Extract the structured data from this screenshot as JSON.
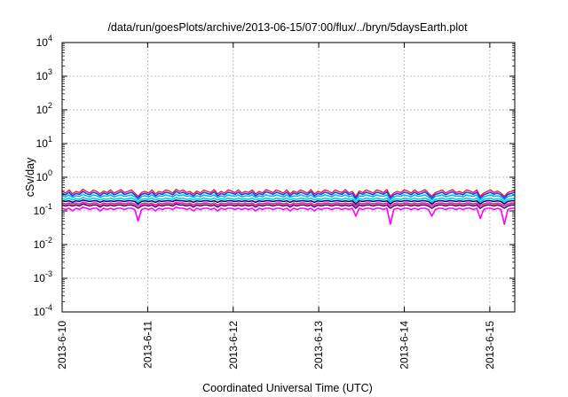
{
  "chart_data": {
    "type": "line",
    "title": "/data/run/goesPlots/archive/2013-06-15/07:00/flux/../bryn/5daysEarth.plot",
    "xlabel": "Coordinated Universal Time (UTC)",
    "ylabel": "cSv/day",
    "yscale": "log",
    "ylim": [
      0.0001,
      10000
    ],
    "xlim": [
      "2013-06-10 00:00",
      "2013-06-15 07:00"
    ],
    "grid": true,
    "legend": "none",
    "y_ticks": [
      {
        "mant": "10",
        "exp": "-4"
      },
      {
        "mant": "10",
        "exp": "-3"
      },
      {
        "mant": "10",
        "exp": "-2"
      },
      {
        "mant": "10",
        "exp": "-1"
      },
      {
        "mant": "10",
        "exp": "0"
      },
      {
        "mant": "10",
        "exp": "1"
      },
      {
        "mant": "10",
        "exp": "2"
      },
      {
        "mant": "10",
        "exp": "3"
      },
      {
        "mant": "10",
        "exp": "4"
      }
    ],
    "x_ticks": [
      "2013-6-10",
      "2013-6-11",
      "2013-6-12",
      "2013-6-13",
      "2013-6-14",
      "2013-6-15"
    ],
    "series": [
      {
        "color": "#ff00ff",
        "values": [
          0.12,
          0.11,
          0.12,
          0.1,
          0.12,
          0.11,
          0.13,
          0.12,
          0.11,
          0.12,
          0.12,
          0.1,
          0.12,
          0.11,
          0.12,
          0.11,
          0.12,
          0.12,
          0.11,
          0.12,
          0.12,
          0.11,
          0.05,
          0.11,
          0.12,
          0.11,
          0.12,
          0.1,
          0.12,
          0.11,
          0.12,
          0.12,
          0.11,
          0.13,
          0.12,
          0.12,
          0.11,
          0.12,
          0.1,
          0.12,
          0.11,
          0.12,
          0.12,
          0.11,
          0.12,
          0.1,
          0.12,
          0.11,
          0.12,
          0.12,
          0.11,
          0.12,
          0.11,
          0.12,
          0.11,
          0.12,
          0.1,
          0.12,
          0.11,
          0.12,
          0.12,
          0.11,
          0.12,
          0.12,
          0.11,
          0.12,
          0.1,
          0.12,
          0.11,
          0.12,
          0.12,
          0.11,
          0.12,
          0.1,
          0.12,
          0.11,
          0.12,
          0.12,
          0.11,
          0.12,
          0.12,
          0.11,
          0.12,
          0.11,
          0.12,
          0.07,
          0.12,
          0.11,
          0.12,
          0.12,
          0.11,
          0.12,
          0.12,
          0.11,
          0.12,
          0.04,
          0.11,
          0.12,
          0.11,
          0.12,
          0.12,
          0.11,
          0.12,
          0.11,
          0.12,
          0.12,
          0.11,
          0.07,
          0.11,
          0.12,
          0.12,
          0.11,
          0.12,
          0.12,
          0.11,
          0.12,
          0.11,
          0.12,
          0.12,
          0.11,
          0.12,
          0.06,
          0.11,
          0.12,
          0.12,
          0.11,
          0.12,
          0.11,
          0.04,
          0.11,
          0.12,
          0.12
        ]
      },
      {
        "color": "#4b0082",
        "values": [
          0.15,
          0.14,
          0.15,
          0.14,
          0.15,
          0.14,
          0.16,
          0.15,
          0.14,
          0.15,
          0.15,
          0.13,
          0.15,
          0.14,
          0.15,
          0.14,
          0.15,
          0.15,
          0.14,
          0.15,
          0.15,
          0.14,
          0.12,
          0.14,
          0.15,
          0.14,
          0.15,
          0.13,
          0.15,
          0.14,
          0.15,
          0.15,
          0.14,
          0.16,
          0.15,
          0.15,
          0.14,
          0.15,
          0.13,
          0.15,
          0.14,
          0.15,
          0.15,
          0.14,
          0.15,
          0.13,
          0.15,
          0.14,
          0.15,
          0.15,
          0.14,
          0.15,
          0.14,
          0.15,
          0.14,
          0.15,
          0.13,
          0.15,
          0.14,
          0.15,
          0.15,
          0.14,
          0.15,
          0.15,
          0.14,
          0.15,
          0.13,
          0.15,
          0.14,
          0.15,
          0.15,
          0.14,
          0.15,
          0.13,
          0.15,
          0.14,
          0.15,
          0.15,
          0.14,
          0.15,
          0.15,
          0.14,
          0.15,
          0.14,
          0.15,
          0.12,
          0.15,
          0.14,
          0.15,
          0.15,
          0.14,
          0.15,
          0.15,
          0.14,
          0.15,
          0.12,
          0.14,
          0.15,
          0.14,
          0.15,
          0.15,
          0.14,
          0.15,
          0.14,
          0.15,
          0.15,
          0.14,
          0.12,
          0.14,
          0.15,
          0.15,
          0.14,
          0.15,
          0.15,
          0.14,
          0.15,
          0.14,
          0.15,
          0.15,
          0.14,
          0.15,
          0.12,
          0.14,
          0.15,
          0.15,
          0.14,
          0.15,
          0.14,
          0.12,
          0.14,
          0.15,
          0.15
        ]
      },
      {
        "color": "#ff1493",
        "values": [
          0.17,
          0.16,
          0.17,
          0.16,
          0.17,
          0.16,
          0.18,
          0.17,
          0.16,
          0.17,
          0.17,
          0.15,
          0.17,
          0.16,
          0.17,
          0.16,
          0.17,
          0.17,
          0.16,
          0.17,
          0.17,
          0.16,
          0.14,
          0.16,
          0.17,
          0.16,
          0.17,
          0.15,
          0.17,
          0.16,
          0.17,
          0.17,
          0.16,
          0.18,
          0.17,
          0.17,
          0.16,
          0.17,
          0.15,
          0.17,
          0.16,
          0.17,
          0.17,
          0.16,
          0.17,
          0.15,
          0.17,
          0.16,
          0.17,
          0.17,
          0.16,
          0.17,
          0.16,
          0.17,
          0.16,
          0.17,
          0.15,
          0.17,
          0.16,
          0.17,
          0.17,
          0.16,
          0.17,
          0.17,
          0.16,
          0.17,
          0.15,
          0.17,
          0.16,
          0.17,
          0.17,
          0.16,
          0.17,
          0.15,
          0.17,
          0.16,
          0.17,
          0.17,
          0.16,
          0.17,
          0.17,
          0.16,
          0.17,
          0.16,
          0.17,
          0.14,
          0.17,
          0.16,
          0.17,
          0.17,
          0.16,
          0.17,
          0.17,
          0.16,
          0.17,
          0.14,
          0.16,
          0.17,
          0.16,
          0.17,
          0.17,
          0.16,
          0.17,
          0.16,
          0.17,
          0.17,
          0.16,
          0.14,
          0.16,
          0.17,
          0.17,
          0.16,
          0.17,
          0.17,
          0.16,
          0.17,
          0.16,
          0.17,
          0.17,
          0.16,
          0.17,
          0.14,
          0.16,
          0.17,
          0.17,
          0.16,
          0.17,
          0.16,
          0.14,
          0.16,
          0.17,
          0.17
        ]
      },
      {
        "color": "#000080",
        "values": [
          0.2,
          0.19,
          0.2,
          0.18,
          0.2,
          0.19,
          0.21,
          0.2,
          0.19,
          0.2,
          0.2,
          0.18,
          0.2,
          0.19,
          0.2,
          0.19,
          0.2,
          0.2,
          0.19,
          0.2,
          0.2,
          0.19,
          0.16,
          0.19,
          0.2,
          0.19,
          0.2,
          0.18,
          0.2,
          0.19,
          0.2,
          0.2,
          0.19,
          0.21,
          0.2,
          0.2,
          0.19,
          0.2,
          0.18,
          0.2,
          0.19,
          0.2,
          0.2,
          0.19,
          0.2,
          0.18,
          0.2,
          0.19,
          0.2,
          0.2,
          0.19,
          0.2,
          0.19,
          0.2,
          0.19,
          0.2,
          0.18,
          0.2,
          0.19,
          0.2,
          0.2,
          0.19,
          0.2,
          0.2,
          0.19,
          0.2,
          0.18,
          0.2,
          0.19,
          0.2,
          0.2,
          0.19,
          0.2,
          0.18,
          0.2,
          0.19,
          0.2,
          0.2,
          0.19,
          0.2,
          0.2,
          0.19,
          0.2,
          0.19,
          0.2,
          0.16,
          0.2,
          0.19,
          0.2,
          0.2,
          0.19,
          0.2,
          0.2,
          0.19,
          0.2,
          0.16,
          0.19,
          0.2,
          0.19,
          0.2,
          0.2,
          0.19,
          0.2,
          0.19,
          0.2,
          0.2,
          0.19,
          0.16,
          0.19,
          0.2,
          0.2,
          0.19,
          0.2,
          0.2,
          0.19,
          0.2,
          0.19,
          0.2,
          0.2,
          0.19,
          0.2,
          0.16,
          0.19,
          0.2,
          0.2,
          0.19,
          0.2,
          0.19,
          0.16,
          0.19,
          0.2,
          0.2
        ]
      },
      {
        "color": "#00ced1",
        "values": [
          0.23,
          0.22,
          0.24,
          0.21,
          0.23,
          0.22,
          0.25,
          0.23,
          0.22,
          0.24,
          0.23,
          0.21,
          0.23,
          0.22,
          0.24,
          0.22,
          0.23,
          0.24,
          0.22,
          0.23,
          0.24,
          0.22,
          0.18,
          0.22,
          0.23,
          0.22,
          0.24,
          0.21,
          0.23,
          0.22,
          0.24,
          0.23,
          0.22,
          0.25,
          0.23,
          0.24,
          0.22,
          0.23,
          0.21,
          0.23,
          0.22,
          0.24,
          0.23,
          0.22,
          0.24,
          0.21,
          0.23,
          0.22,
          0.24,
          0.23,
          0.22,
          0.24,
          0.22,
          0.23,
          0.22,
          0.24,
          0.21,
          0.23,
          0.22,
          0.24,
          0.23,
          0.22,
          0.24,
          0.23,
          0.22,
          0.24,
          0.21,
          0.23,
          0.22,
          0.24,
          0.23,
          0.22,
          0.24,
          0.21,
          0.23,
          0.22,
          0.24,
          0.23,
          0.22,
          0.24,
          0.23,
          0.22,
          0.24,
          0.22,
          0.23,
          0.18,
          0.23,
          0.22,
          0.24,
          0.23,
          0.22,
          0.24,
          0.23,
          0.22,
          0.24,
          0.18,
          0.22,
          0.23,
          0.22,
          0.24,
          0.23,
          0.22,
          0.24,
          0.22,
          0.23,
          0.24,
          0.22,
          0.18,
          0.22,
          0.23,
          0.24,
          0.22,
          0.23,
          0.24,
          0.22,
          0.23,
          0.22,
          0.24,
          0.23,
          0.22,
          0.24,
          0.18,
          0.22,
          0.23,
          0.24,
          0.22,
          0.23,
          0.22,
          0.18,
          0.22,
          0.23,
          0.24
        ]
      },
      {
        "color": "#00bfff",
        "values": [
          0.28,
          0.26,
          0.3,
          0.25,
          0.28,
          0.27,
          0.31,
          0.28,
          0.26,
          0.3,
          0.28,
          0.25,
          0.28,
          0.27,
          0.3,
          0.26,
          0.28,
          0.3,
          0.27,
          0.28,
          0.3,
          0.26,
          0.21,
          0.27,
          0.28,
          0.26,
          0.3,
          0.25,
          0.28,
          0.27,
          0.3,
          0.28,
          0.26,
          0.31,
          0.28,
          0.3,
          0.27,
          0.28,
          0.25,
          0.28,
          0.26,
          0.3,
          0.28,
          0.27,
          0.3,
          0.25,
          0.28,
          0.26,
          0.3,
          0.28,
          0.27,
          0.3,
          0.26,
          0.28,
          0.27,
          0.3,
          0.25,
          0.28,
          0.26,
          0.3,
          0.28,
          0.27,
          0.3,
          0.28,
          0.26,
          0.3,
          0.25,
          0.28,
          0.27,
          0.3,
          0.28,
          0.26,
          0.3,
          0.25,
          0.28,
          0.27,
          0.3,
          0.28,
          0.26,
          0.3,
          0.28,
          0.27,
          0.3,
          0.26,
          0.28,
          0.21,
          0.28,
          0.27,
          0.3,
          0.28,
          0.26,
          0.3,
          0.28,
          0.27,
          0.3,
          0.21,
          0.26,
          0.28,
          0.27,
          0.3,
          0.28,
          0.26,
          0.3,
          0.27,
          0.28,
          0.3,
          0.26,
          0.21,
          0.27,
          0.28,
          0.3,
          0.26,
          0.28,
          0.3,
          0.27,
          0.28,
          0.26,
          0.3,
          0.28,
          0.27,
          0.3,
          0.21,
          0.26,
          0.28,
          0.3,
          0.27,
          0.28,
          0.26,
          0.21,
          0.27,
          0.28,
          0.3
        ]
      },
      {
        "color": "#1e3cff",
        "values": [
          0.33,
          0.3,
          0.36,
          0.28,
          0.33,
          0.31,
          0.38,
          0.33,
          0.3,
          0.36,
          0.33,
          0.28,
          0.34,
          0.31,
          0.36,
          0.3,
          0.33,
          0.37,
          0.31,
          0.33,
          0.36,
          0.3,
          0.24,
          0.31,
          0.33,
          0.3,
          0.36,
          0.28,
          0.33,
          0.31,
          0.36,
          0.34,
          0.3,
          0.38,
          0.33,
          0.36,
          0.31,
          0.33,
          0.28,
          0.34,
          0.3,
          0.36,
          0.33,
          0.31,
          0.37,
          0.28,
          0.33,
          0.3,
          0.36,
          0.34,
          0.31,
          0.36,
          0.3,
          0.33,
          0.31,
          0.36,
          0.28,
          0.33,
          0.3,
          0.37,
          0.34,
          0.31,
          0.36,
          0.33,
          0.3,
          0.36,
          0.28,
          0.34,
          0.31,
          0.36,
          0.33,
          0.3,
          0.37,
          0.28,
          0.33,
          0.31,
          0.36,
          0.34,
          0.3,
          0.36,
          0.33,
          0.31,
          0.37,
          0.3,
          0.33,
          0.24,
          0.34,
          0.31,
          0.36,
          0.33,
          0.3,
          0.36,
          0.34,
          0.31,
          0.37,
          0.24,
          0.3,
          0.33,
          0.31,
          0.36,
          0.34,
          0.3,
          0.36,
          0.31,
          0.33,
          0.37,
          0.3,
          0.24,
          0.31,
          0.33,
          0.36,
          0.3,
          0.34,
          0.37,
          0.31,
          0.33,
          0.3,
          0.36,
          0.34,
          0.31,
          0.36,
          0.24,
          0.3,
          0.33,
          0.36,
          0.31,
          0.34,
          0.3,
          0.24,
          0.31,
          0.33,
          0.36
        ]
      },
      {
        "color": "#e8112d",
        "values": [
          0.38,
          0.34,
          0.42,
          0.32,
          0.38,
          0.35,
          0.44,
          0.38,
          0.34,
          0.42,
          0.38,
          0.32,
          0.39,
          0.35,
          0.42,
          0.34,
          0.38,
          0.43,
          0.35,
          0.38,
          0.42,
          0.34,
          0.27,
          0.35,
          0.38,
          0.34,
          0.42,
          0.32,
          0.38,
          0.35,
          0.42,
          0.39,
          0.34,
          0.44,
          0.38,
          0.42,
          0.35,
          0.38,
          0.32,
          0.39,
          0.34,
          0.42,
          0.38,
          0.35,
          0.43,
          0.32,
          0.38,
          0.34,
          0.42,
          0.39,
          0.35,
          0.42,
          0.34,
          0.38,
          0.35,
          0.42,
          0.32,
          0.38,
          0.34,
          0.43,
          0.39,
          0.35,
          0.42,
          0.38,
          0.34,
          0.42,
          0.32,
          0.39,
          0.35,
          0.42,
          0.38,
          0.34,
          0.43,
          0.32,
          0.38,
          0.35,
          0.42,
          0.39,
          0.34,
          0.42,
          0.38,
          0.35,
          0.43,
          0.34,
          0.38,
          0.27,
          0.39,
          0.35,
          0.42,
          0.38,
          0.34,
          0.42,
          0.39,
          0.35,
          0.43,
          0.27,
          0.34,
          0.38,
          0.35,
          0.42,
          0.39,
          0.34,
          0.42,
          0.35,
          0.38,
          0.43,
          0.34,
          0.27,
          0.35,
          0.38,
          0.42,
          0.34,
          0.39,
          0.43,
          0.35,
          0.38,
          0.34,
          0.42,
          0.39,
          0.35,
          0.42,
          0.27,
          0.34,
          0.38,
          0.42,
          0.35,
          0.39,
          0.34,
          0.27,
          0.35,
          0.38,
          0.42
        ]
      }
    ]
  }
}
